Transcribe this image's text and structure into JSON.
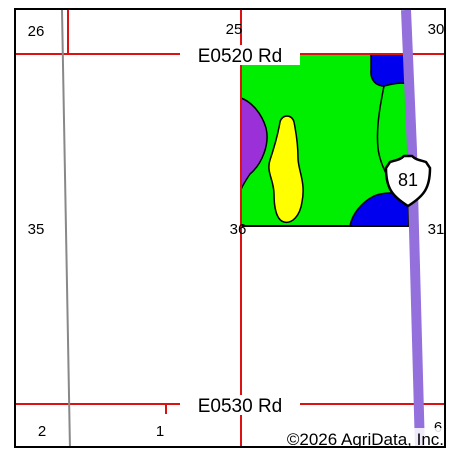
{
  "roads": {
    "north": "E0520 Rd",
    "south": "E0530 Rd"
  },
  "highway": {
    "number": "81",
    "color": "#9370db"
  },
  "sections": {
    "s26": "26",
    "s25": "25",
    "s30": "30",
    "s35": "35",
    "s36": "36",
    "s31": "31",
    "s2": "2",
    "s1": "1",
    "s6": "6"
  },
  "soil_colors": {
    "green": "#00ee00",
    "yellow": "#ffff00",
    "purple": "#9b30d9",
    "blue": "#0000ee"
  },
  "copyright": "©2026 AgriData, Inc."
}
